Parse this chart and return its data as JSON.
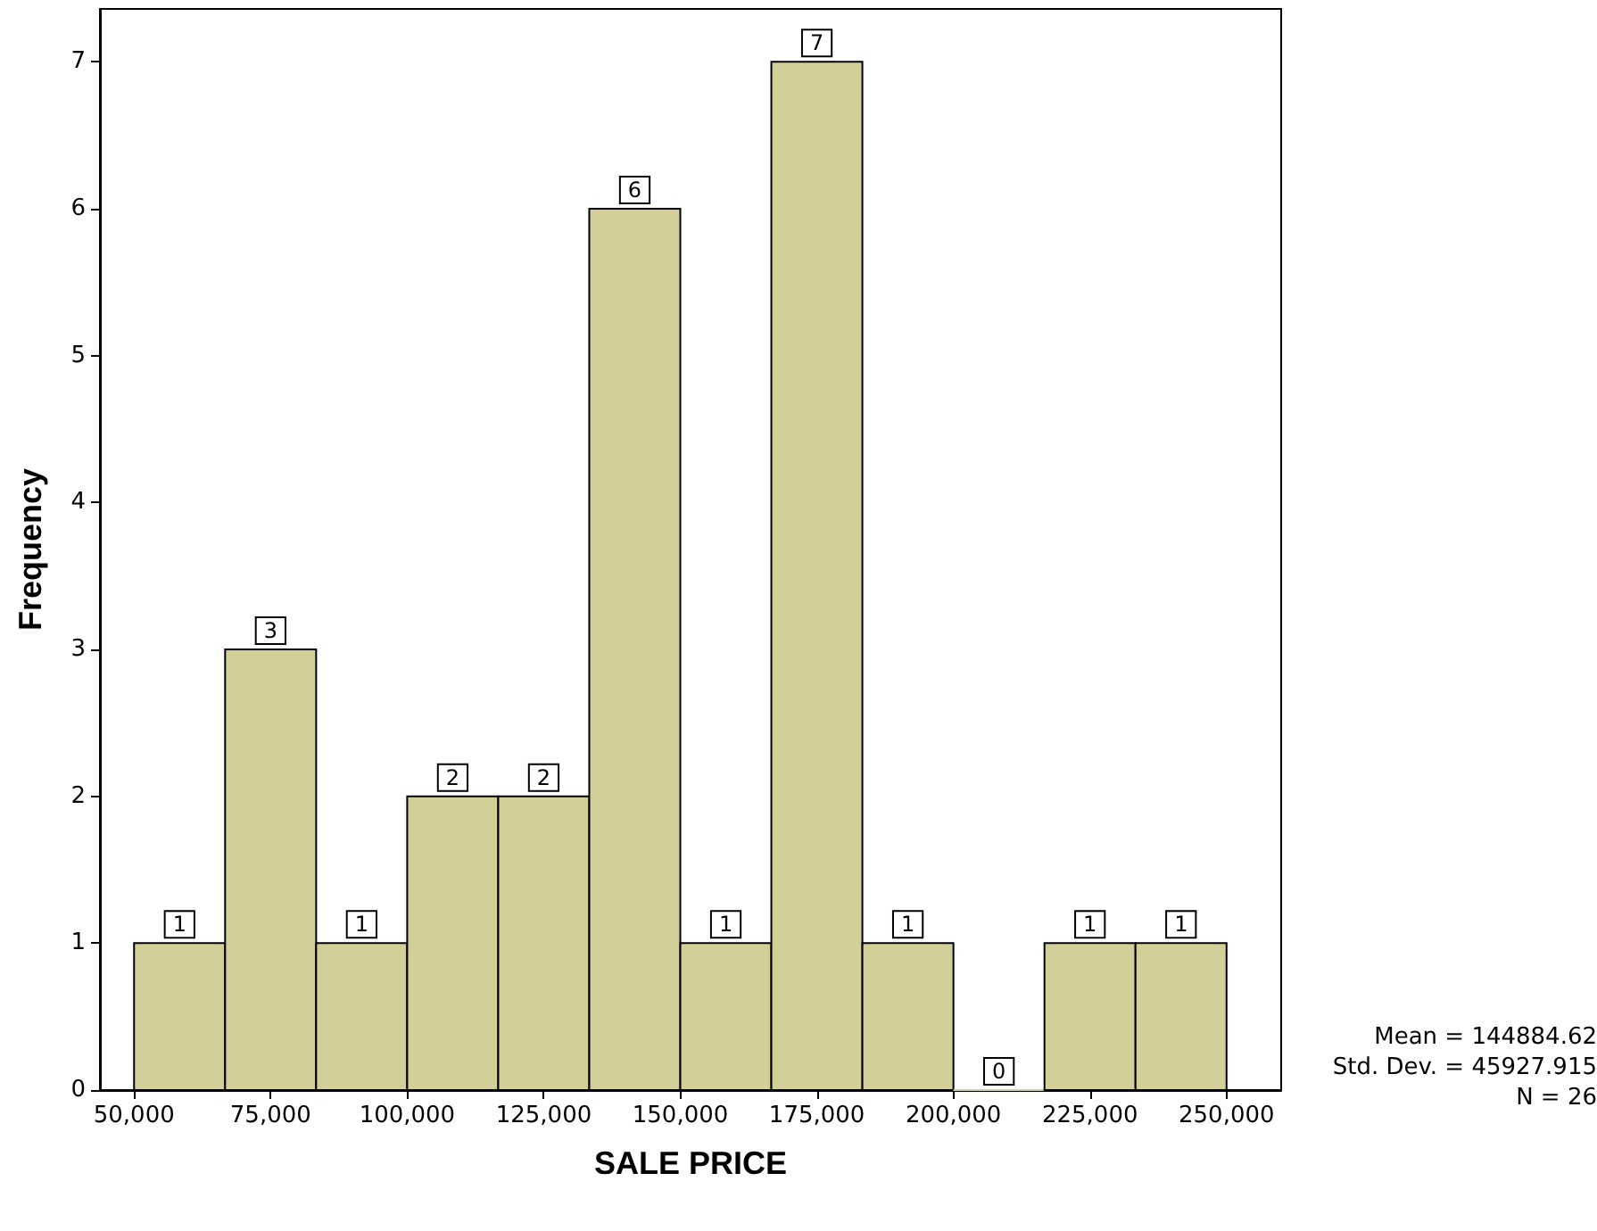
{
  "chart_data": {
    "type": "histogram",
    "xlabel": "SALE PRICE",
    "ylabel": "Frequency",
    "bins": [
      50000,
      66667,
      83333,
      100000,
      116667,
      133333,
      150000,
      166667,
      183333,
      200000,
      216667,
      233333,
      250000
    ],
    "values": [
      1,
      3,
      1,
      2,
      2,
      6,
      1,
      7,
      1,
      0,
      1,
      1
    ],
    "color": "#d3cf98",
    "xlim": [
      43750,
      260000
    ],
    "xticks": [
      {
        "value": 50000,
        "label": "50,000"
      },
      {
        "value": 75000,
        "label": "75,000"
      },
      {
        "value": 100000,
        "label": "100,000"
      },
      {
        "value": 125000,
        "label": "125,000"
      },
      {
        "value": 150000,
        "label": "150,000"
      },
      {
        "value": 175000,
        "label": "175,000"
      },
      {
        "value": 200000,
        "label": "200,000"
      },
      {
        "value": 225000,
        "label": "225,000"
      },
      {
        "value": 250000,
        "label": "250,000"
      }
    ],
    "ylim": [
      0,
      7.36
    ],
    "yticks": [
      0,
      1,
      2,
      3,
      4,
      5,
      6,
      7
    ],
    "grid": false,
    "data_labels": true,
    "annotations": [
      "Mean = 144884.62",
      "Std. Dev. = 45927.915",
      "N = 26"
    ]
  }
}
